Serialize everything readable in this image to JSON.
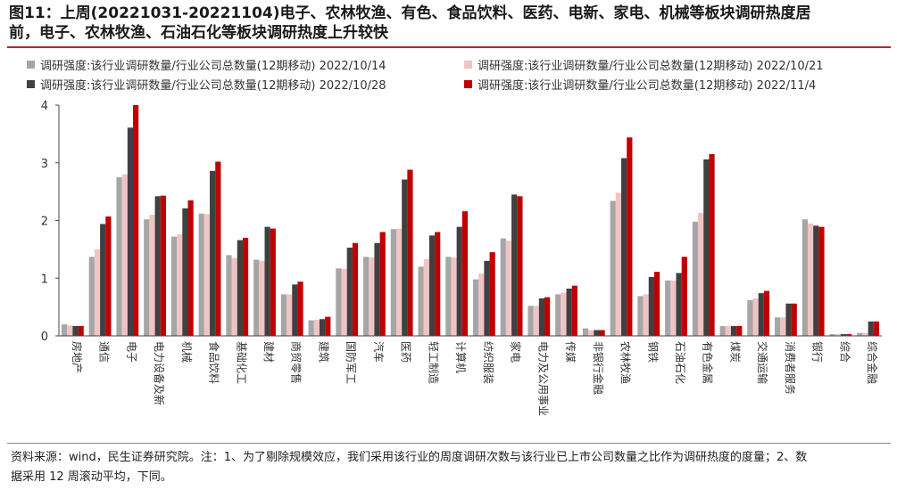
{
  "figure": {
    "title_line1": "图11：上周(20221031-20221104)电子、农林牧渔、有色、食品饮料、医药、电新、家电、机械等板块调研热度居",
    "title_line2": "前，电子、农林牧渔、石油石化等板块调研热度上升较快",
    "source_line1": "资料来源：wind，民生证券研究院。注：1、为了剔除规模效应，我们采用该行业的周度调研次数与该行业已上市公司数量之比作为调研热度的度量；2、数",
    "source_line2": "据采用 12 周滚动平均，下同。"
  },
  "chart_data": {
    "type": "bar",
    "ylim": [
      0,
      4
    ],
    "yticks": [
      "0",
      "1",
      "2",
      "3",
      "4"
    ],
    "legend_position": "top",
    "categories": [
      "房地产",
      "通信",
      "电子",
      "电力设备及新能源",
      "机械",
      "食品饮料",
      "基础化工",
      "建材",
      "商贸零售",
      "建筑",
      "国防军工",
      "汽车",
      "医药",
      "轻工制造",
      "计算机",
      "纺织服装",
      "家电",
      "电力及公用事业",
      "传媒",
      "非银行金融",
      "农林牧渔",
      "钢铁",
      "石油石化",
      "有色金属",
      "煤炭",
      "交通运输",
      "消费者服务",
      "银行",
      "综合",
      "综合金融"
    ],
    "tick_labels": [
      "房地产",
      "通信",
      "电子",
      "电力设备及新",
      "机械",
      "食品饮料",
      "基础化工",
      "建材",
      "商贸零售",
      "建筑",
      "国防军工",
      "汽车",
      "医药",
      "轻工制造",
      "计算机",
      "纺织服装",
      "家电",
      "电力及公用事业",
      "传媒",
      "非银行金融",
      "农林牧渔",
      "钢铁",
      "石油石化",
      "有色金属",
      "煤炭",
      "交通运输",
      "消费者服务",
      "银行",
      "综合",
      "综合金融"
    ],
    "series": [
      {
        "name": "调研强度:该行业调研数量/行业公司总数量(12期移动) 2022/10/14",
        "color": "#a6a6a6",
        "values": [
          0.2,
          1.37,
          2.75,
          2.02,
          1.72,
          2.12,
          1.4,
          1.32,
          0.72,
          0.27,
          1.17,
          1.37,
          1.85,
          1.2,
          1.37,
          0.98,
          1.69,
          0.52,
          0.72,
          0.13,
          2.34,
          0.69,
          0.96,
          1.98,
          0.17,
          0.62,
          0.32,
          2.02,
          0.03,
          0.05
        ]
      },
      {
        "name": "调研强度:该行业调研数量/行业公司总数量(12期移动) 2022/10/21",
        "color": "#f0c4c4",
        "values": [
          0.18,
          1.5,
          2.8,
          2.1,
          1.76,
          2.11,
          1.35,
          1.3,
          0.72,
          0.28,
          1.16,
          1.36,
          1.86,
          1.33,
          1.36,
          1.08,
          1.65,
          0.52,
          0.75,
          0.1,
          2.48,
          0.72,
          0.96,
          2.13,
          0.17,
          0.65,
          0.32,
          1.95,
          0.03,
          0.05
        ]
      },
      {
        "name": "调研强度:该行业调研数量/行业公司总数量(12期移动) 2022/10/28",
        "color": "#404040",
        "values": [
          0.17,
          1.94,
          3.61,
          2.42,
          2.21,
          2.86,
          1.66,
          1.89,
          0.89,
          0.29,
          1.53,
          1.61,
          2.71,
          1.74,
          1.89,
          1.3,
          2.45,
          0.65,
          0.82,
          0.1,
          3.08,
          1.02,
          1.09,
          3.06,
          0.17,
          0.74,
          0.56,
          1.91,
          0.03,
          0.25
        ]
      },
      {
        "name": "调研强度:该行业调研数量/行业公司总数量(12期移动) 2022/11/4",
        "color": "#c00000",
        "values": [
          0.17,
          2.07,
          4.0,
          2.43,
          2.35,
          3.02,
          1.7,
          1.86,
          0.94,
          0.33,
          1.61,
          1.8,
          2.88,
          1.8,
          2.16,
          1.45,
          2.42,
          0.67,
          0.87,
          0.1,
          3.44,
          1.11,
          1.37,
          3.15,
          0.17,
          0.78,
          0.56,
          1.89,
          0.03,
          0.25
        ]
      }
    ]
  }
}
